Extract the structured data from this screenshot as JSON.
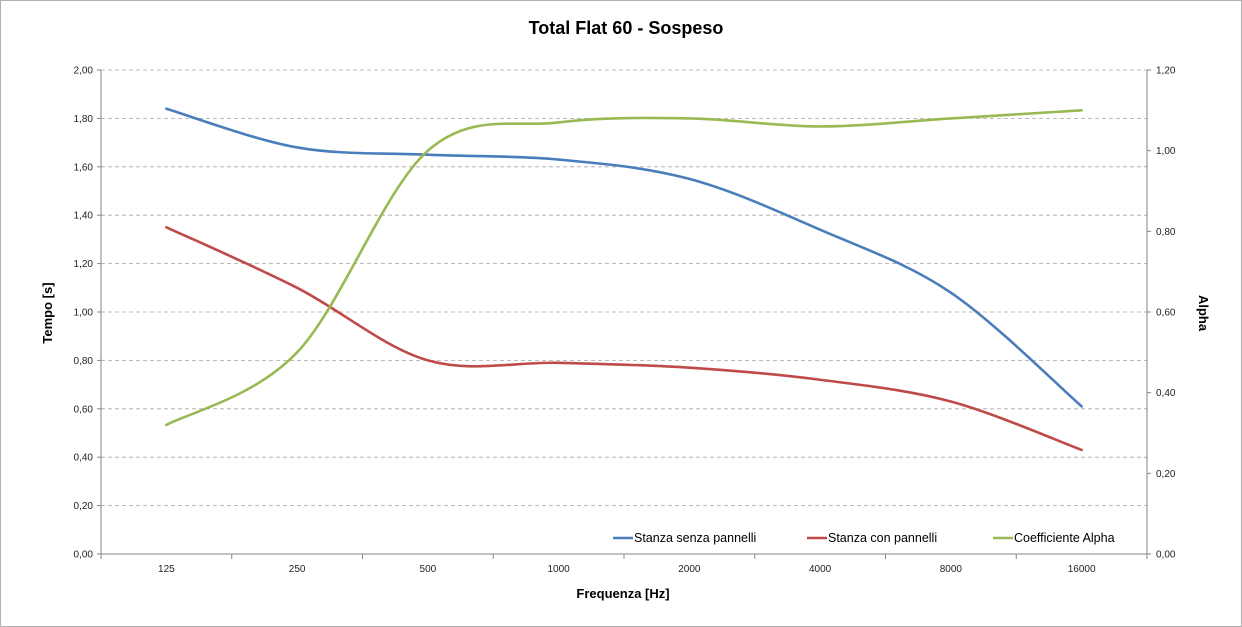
{
  "chart_data": {
    "type": "line",
    "title": "Total Flat 60 - Sospeso",
    "xlabel": "Frequenza [Hz]",
    "ylabel": "Tempo [s]",
    "y2label": "Alpha",
    "categories": [
      "125",
      "250",
      "500",
      "1000",
      "2000",
      "4000",
      "8000",
      "16000"
    ],
    "ylim": [
      0,
      2
    ],
    "y2lim": [
      0,
      1.2
    ],
    "y_ticks": [
      "0,00",
      "0,20",
      "0,40",
      "0,60",
      "0,80",
      "1,00",
      "1,20",
      "1,40",
      "1,60",
      "1,80",
      "2,00"
    ],
    "y2_ticks": [
      "0,00",
      "0,20",
      "0,40",
      "0,60",
      "0,80",
      "1,00",
      "1,20"
    ],
    "grid": "horizontal dashed",
    "legend_position": "bottom-right",
    "series": [
      {
        "name": "Stanza senza pannelli",
        "axis": "left",
        "color": "#4a7ebb",
        "values": [
          1.84,
          1.68,
          1.65,
          1.63,
          1.55,
          1.34,
          1.08,
          0.61
        ]
      },
      {
        "name": "Stanza con pannelli",
        "axis": "left",
        "color": "#be4b48",
        "values": [
          1.35,
          1.1,
          0.8,
          0.79,
          0.77,
          0.72,
          0.63,
          0.43
        ]
      },
      {
        "name": "Coefficiente Alpha",
        "axis": "right",
        "color": "#98b954",
        "values": [
          0.32,
          0.5,
          1.0,
          1.07,
          1.08,
          1.06,
          1.08,
          1.1
        ]
      }
    ]
  }
}
